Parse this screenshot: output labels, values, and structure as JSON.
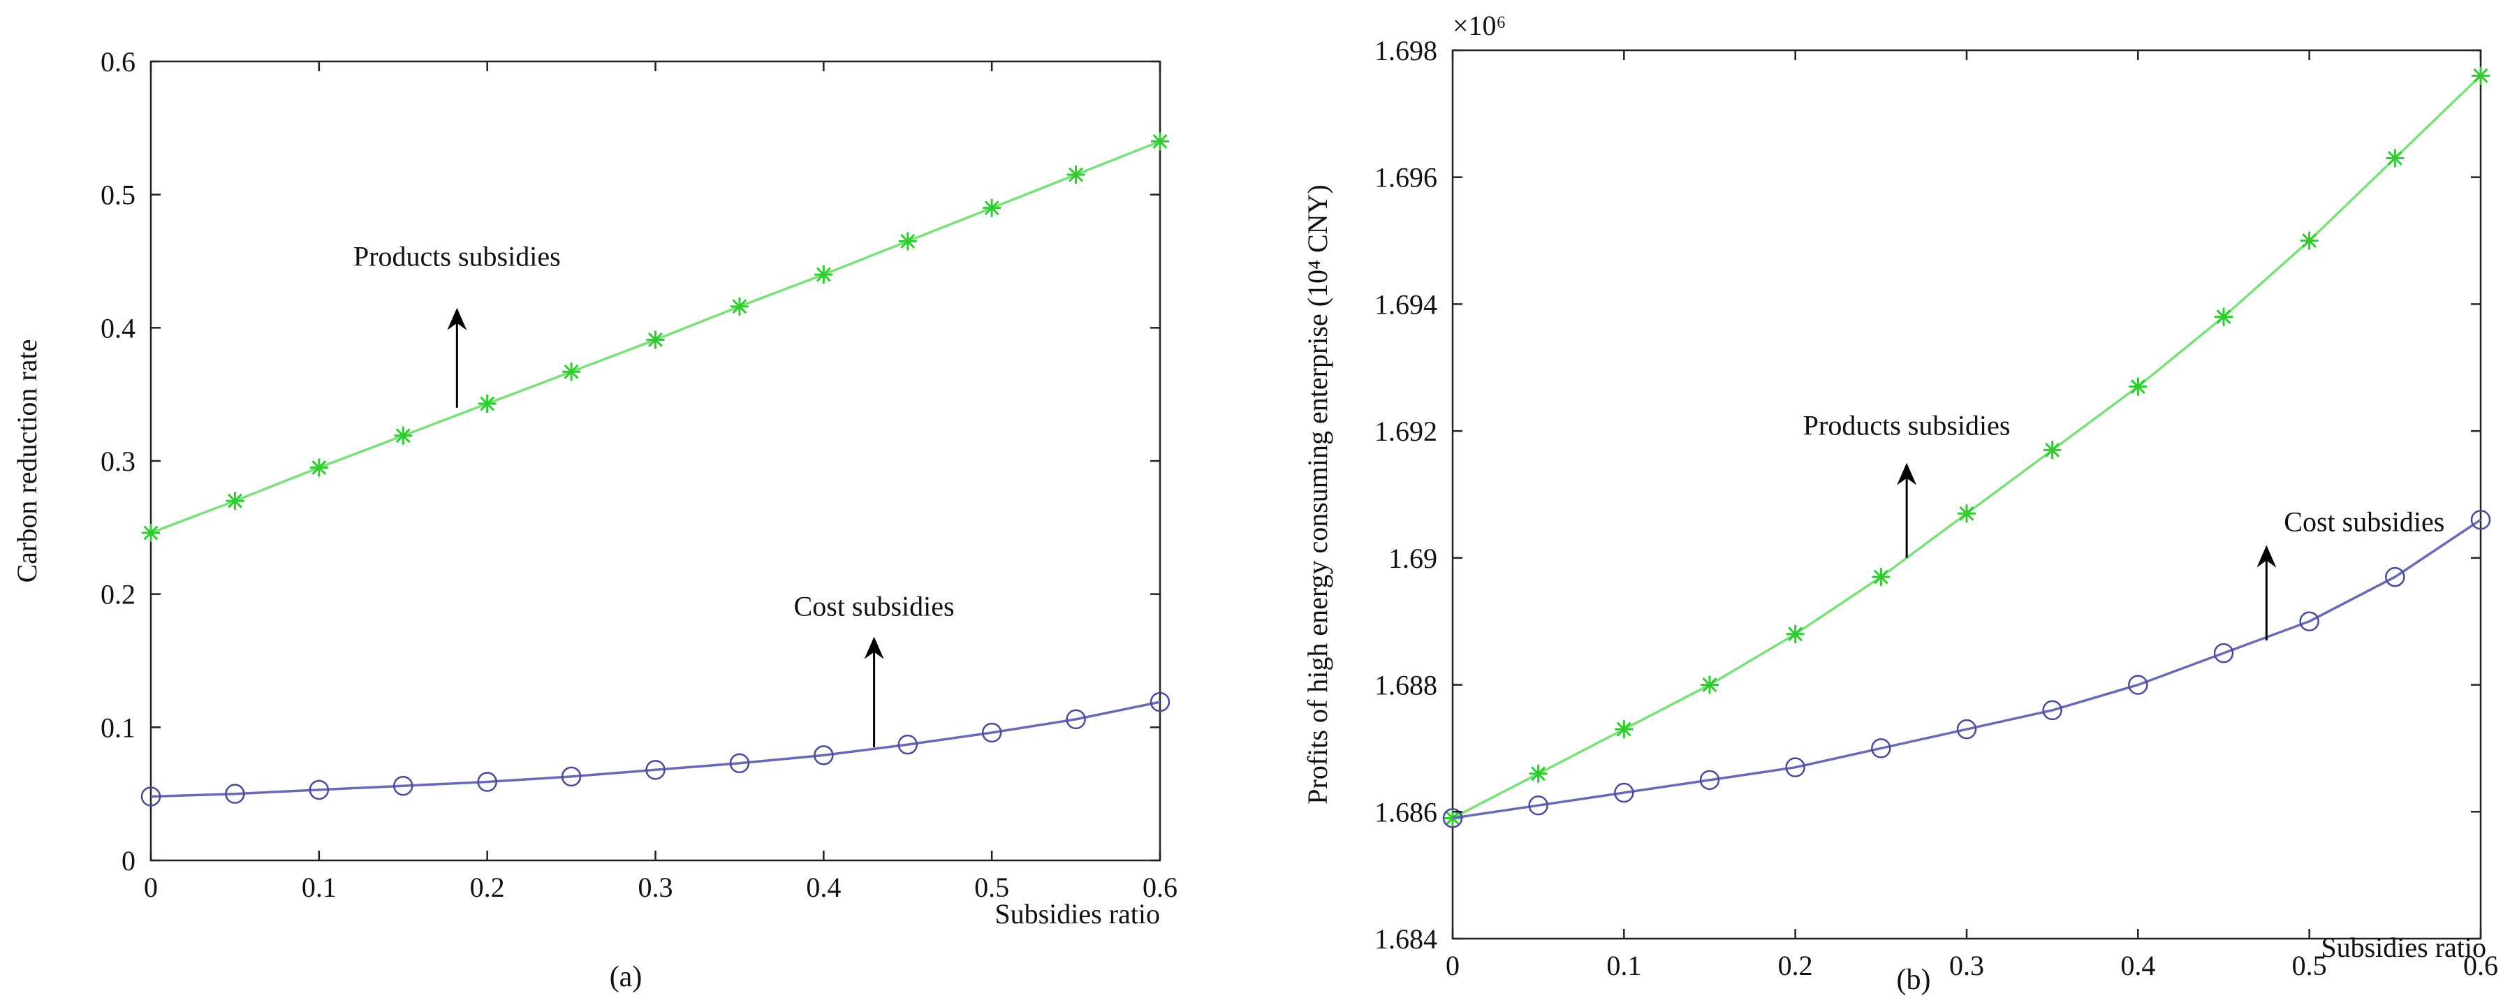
{
  "chart_data": [
    {
      "type": "line",
      "panel_label": "(a)",
      "title": "",
      "xlabel": "Subsidies ratio",
      "ylabel": "Carbon reduction rate",
      "xlim": [
        0,
        0.6
      ],
      "ylim": [
        0,
        0.6
      ],
      "xticks": [
        0,
        0.1,
        0.2,
        0.3,
        0.4,
        0.5,
        0.6
      ],
      "xtick_labels": [
        "0",
        "0.1",
        "0.2",
        "0.3",
        "0.4",
        "0.5",
        "0.6"
      ],
      "yticks": [
        0,
        0.1,
        0.2,
        0.3,
        0.4,
        0.5,
        0.6
      ],
      "ytick_labels": [
        "0",
        "0.1",
        "0.2",
        "0.3",
        "0.4",
        "0.5",
        "0.6"
      ],
      "y_exponent_label": "",
      "grid": false,
      "x": [
        0,
        0.05,
        0.1,
        0.15,
        0.2,
        0.25,
        0.3,
        0.35,
        0.4,
        0.45,
        0.5,
        0.55,
        0.6
      ],
      "series": [
        {
          "name": "Products subsidies",
          "marker": "star",
          "color": "#7be07b",
          "marker_color": "#2ecc2e",
          "values": [
            0.246,
            0.27,
            0.295,
            0.319,
            0.343,
            0.367,
            0.391,
            0.416,
            0.44,
            0.465,
            0.49,
            0.515,
            0.54
          ]
        },
        {
          "name": "Cost subsidies",
          "marker": "circle",
          "color": "#6a6ab4",
          "marker_color": "#4a4a9a",
          "values": [
            0.048,
            0.05,
            0.053,
            0.056,
            0.059,
            0.063,
            0.068,
            0.073,
            0.079,
            0.087,
            0.096,
            0.106,
            0.119
          ]
        }
      ],
      "annotations": [
        {
          "text": "Products subsidies",
          "arrow_from": [
            0.182,
            0.34
          ],
          "arrow_to": [
            0.182,
            0.415
          ]
        },
        {
          "text": "Cost subsidies",
          "arrow_from": [
            0.43,
            0.085
          ],
          "arrow_to": [
            0.43,
            0.168
          ]
        }
      ]
    },
    {
      "type": "line",
      "panel_label": "(b)",
      "title": "",
      "xlabel": "Subsidies ratio",
      "ylabel": "Profits of high energy consuming enterprise (10⁴ CNY)",
      "xlim": [
        0,
        0.6
      ],
      "ylim": [
        1.684,
        1.698
      ],
      "xticks": [
        0,
        0.1,
        0.2,
        0.3,
        0.4,
        0.5,
        0.6
      ],
      "xtick_labels": [
        "0",
        "0.1",
        "0.2",
        "0.3",
        "0.4",
        "0.5",
        "0.6"
      ],
      "yticks": [
        1.684,
        1.686,
        1.688,
        1.69,
        1.692,
        1.694,
        1.696,
        1.698
      ],
      "ytick_labels": [
        "1.684",
        "1.686",
        "1.688",
        "1.69",
        "1.692",
        "1.694",
        "1.696",
        "1.698"
      ],
      "y_exponent_label": "×10⁶",
      "grid": false,
      "x": [
        0,
        0.05,
        0.1,
        0.15,
        0.2,
        0.25,
        0.3,
        0.35,
        0.4,
        0.45,
        0.5,
        0.55,
        0.6
      ],
      "series": [
        {
          "name": "Products subsidies",
          "marker": "star",
          "color": "#7be07b",
          "marker_color": "#2ecc2e",
          "values": [
            1.6859,
            1.6866,
            1.6873,
            1.688,
            1.6888,
            1.6897,
            1.6907,
            1.6917,
            1.6927,
            1.6938,
            1.695,
            1.6963,
            1.6976
          ]
        },
        {
          "name": "Cost subsidies",
          "marker": "circle",
          "color": "#6a6ab4",
          "marker_color": "#4a4a9a",
          "values": [
            1.6859,
            1.6861,
            1.6863,
            1.6865,
            1.6867,
            1.687,
            1.6873,
            1.6876,
            1.688,
            1.6885,
            1.689,
            1.6897,
            1.6906
          ]
        }
      ],
      "annotations": [
        {
          "text": "Products subsidies",
          "arrow_from": [
            0.265,
            1.69
          ],
          "arrow_to": [
            0.265,
            1.6915
          ]
        },
        {
          "text": "Cost subsidies",
          "arrow_from": [
            0.475,
            1.6887
          ],
          "arrow_to": [
            0.475,
            1.6902
          ]
        }
      ]
    }
  ]
}
